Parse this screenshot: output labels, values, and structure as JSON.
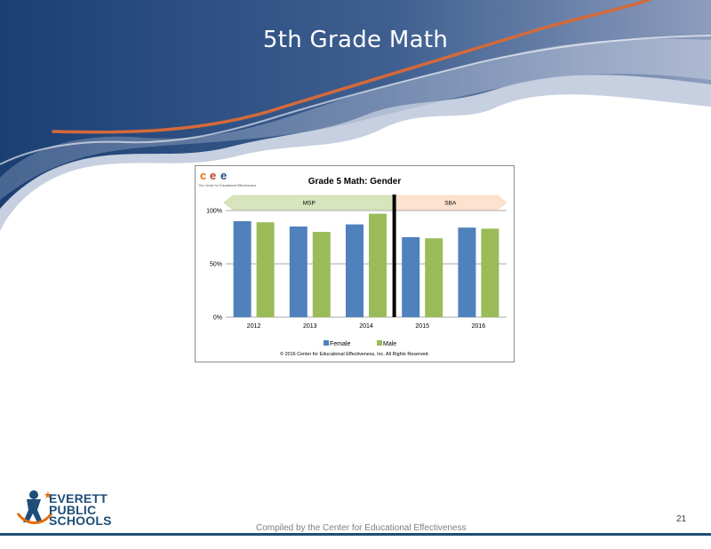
{
  "slide": {
    "title": "5th Grade Math",
    "page_number": "21",
    "footer": "Compiled by the Center for Educational Effectiveness"
  },
  "logo": {
    "lines": [
      "EVERETT",
      "PUBLIC",
      "SCHOOLS"
    ]
  },
  "cee": {
    "letters": [
      "c",
      "e",
      "e"
    ],
    "tagline": "The Center for Educational Effectiveness"
  },
  "colors": {
    "female": "#4f81bd",
    "male": "#9bbb59",
    "msp_band": "#d7e4bd",
    "sba_band": "#fde2cf",
    "navy": "#1f4e79",
    "orange_swoosh": "#d46a3a"
  },
  "chart_data": {
    "type": "bar",
    "title": "Grade 5 Math: Gender",
    "categories": [
      "2012",
      "2013",
      "2014",
      "2015",
      "2016"
    ],
    "series": [
      {
        "name": "Female",
        "values": [
          90,
          85,
          87,
          75,
          84
        ]
      },
      {
        "name": "Male",
        "values": [
          89,
          80,
          97,
          74,
          83
        ]
      }
    ],
    "ylim": [
      0,
      100
    ],
    "yticks": [
      {
        "value": 0,
        "label": "0%"
      },
      {
        "value": 50,
        "label": "50%"
      },
      {
        "value": 100,
        "label": "100%"
      }
    ],
    "bands": [
      {
        "label": "MSP",
        "from": "2012",
        "to": "2014"
      },
      {
        "label": "SBA",
        "from": "2015",
        "to": "2016"
      }
    ],
    "divider_between": [
      "2014",
      "2015"
    ],
    "legend_position": "bottom",
    "grid": true,
    "copyright": "© 2016 Center for Educational Effectiveness, Inc. All Rights Reserved."
  }
}
